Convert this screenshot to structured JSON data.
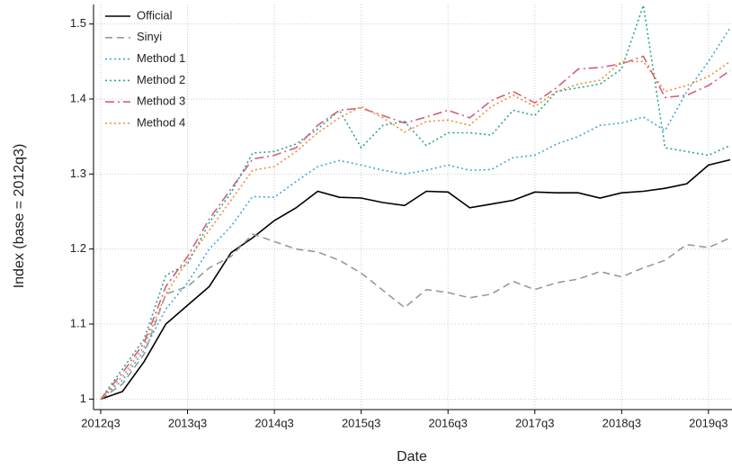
{
  "chart_data": {
    "type": "line",
    "x_label": "Date",
    "y_label": "Index (base = 2012q3)",
    "categories": [
      "2012q3",
      null,
      null,
      null,
      "2013q3",
      null,
      null,
      null,
      "2014q3",
      null,
      null,
      null,
      "2015q3",
      null,
      null,
      null,
      "2016q3",
      null,
      null,
      null,
      "2017q3",
      null,
      null,
      null,
      "2018q3",
      null,
      null,
      null,
      "2019q3",
      null
    ],
    "ylim": [
      0.986,
      1.526
    ],
    "yticks": [
      1,
      1.1,
      1.2,
      1.3,
      1.4,
      1.5
    ],
    "grid": true,
    "legend": "upper-left",
    "series": [
      {
        "name": "Official",
        "color": "#000000",
        "dash": "solid",
        "values": [
          1.0,
          1.01,
          1.05,
          1.1,
          1.125,
          1.15,
          1.195,
          1.215,
          1.238,
          1.255,
          1.277,
          1.269,
          1.268,
          1.262,
          1.258,
          1.277,
          1.276,
          1.255,
          1.26,
          1.265,
          1.276,
          1.275,
          1.275,
          1.268,
          1.275,
          1.277,
          1.281,
          1.287,
          1.312,
          1.319
        ]
      },
      {
        "name": "Sinyi",
        "color": "#999999",
        "dash": "dashed",
        "values": [
          1.0,
          1.02,
          1.06,
          1.14,
          1.15,
          1.175,
          1.19,
          1.22,
          1.21,
          1.2,
          1.196,
          1.185,
          1.168,
          1.145,
          1.122,
          1.146,
          1.142,
          1.135,
          1.14,
          1.157,
          1.146,
          1.155,
          1.16,
          1.17,
          1.163,
          1.175,
          1.185,
          1.206,
          1.202,
          1.215
        ]
      },
      {
        "name": "Method 1",
        "color": "#3fa9d9",
        "dash": "dotted",
        "values": [
          1.0,
          1.025,
          1.065,
          1.12,
          1.155,
          1.2,
          1.23,
          1.27,
          1.269,
          1.29,
          1.31,
          1.318,
          1.312,
          1.305,
          1.3,
          1.305,
          1.312,
          1.305,
          1.306,
          1.322,
          1.325,
          1.34,
          1.35,
          1.365,
          1.368,
          1.376,
          1.358,
          1.41,
          1.45,
          1.495
        ]
      },
      {
        "name": "Method 2",
        "color": "#2aa58f",
        "dash": "dotted",
        "values": [
          1.0,
          1.04,
          1.08,
          1.165,
          1.18,
          1.235,
          1.275,
          1.328,
          1.33,
          1.34,
          1.36,
          1.385,
          1.335,
          1.365,
          1.37,
          1.338,
          1.355,
          1.355,
          1.352,
          1.385,
          1.378,
          1.41,
          1.415,
          1.42,
          1.44,
          1.525,
          1.335,
          1.33,
          1.325,
          1.338
        ]
      },
      {
        "name": "Method 3",
        "color": "#d0607f",
        "dash": "dashdot",
        "values": [
          1.0,
          1.035,
          1.075,
          1.15,
          1.19,
          1.24,
          1.28,
          1.32,
          1.325,
          1.335,
          1.365,
          1.385,
          1.388,
          1.378,
          1.368,
          1.376,
          1.385,
          1.375,
          1.398,
          1.41,
          1.395,
          1.415,
          1.44,
          1.442,
          1.447,
          1.457,
          1.402,
          1.405,
          1.418,
          1.438
        ]
      },
      {
        "name": "Method 4",
        "color": "#f08a3c",
        "dash": "dotted",
        "values": [
          1.0,
          1.03,
          1.07,
          1.14,
          1.185,
          1.225,
          1.265,
          1.305,
          1.31,
          1.33,
          1.355,
          1.375,
          1.39,
          1.375,
          1.356,
          1.37,
          1.372,
          1.365,
          1.39,
          1.405,
          1.39,
          1.41,
          1.42,
          1.425,
          1.45,
          1.45,
          1.41,
          1.418,
          1.43,
          1.45
        ]
      }
    ]
  }
}
